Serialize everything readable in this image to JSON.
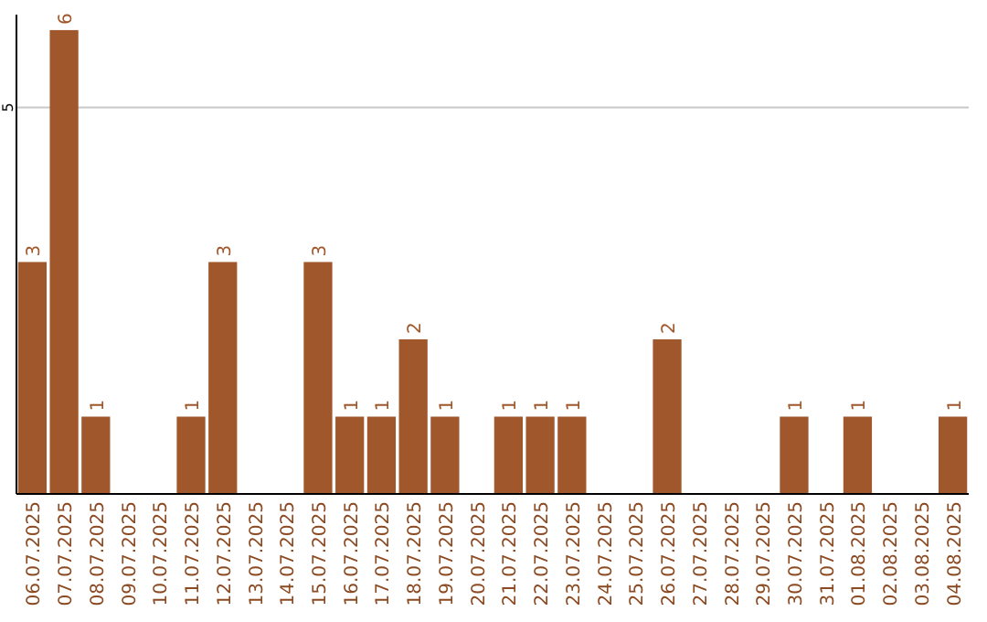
{
  "chart_data": {
    "type": "bar",
    "categories": [
      "06.07.2025",
      "07.07.2025",
      "08.07.2025",
      "09.07.2025",
      "10.07.2025",
      "11.07.2025",
      "12.07.2025",
      "13.07.2025",
      "14.07.2025",
      "15.07.2025",
      "16.07.2025",
      "17.07.2025",
      "18.07.2025",
      "19.07.2025",
      "20.07.2025",
      "21.07.2025",
      "22.07.2025",
      "23.07.2025",
      "24.07.2025",
      "25.07.2025",
      "26.07.2025",
      "27.07.2025",
      "28.07.2025",
      "29.07.2025",
      "30.07.2025",
      "31.07.2025",
      "01.08.2025",
      "02.08.2025",
      "03.08.2025",
      "04.08.2025"
    ],
    "values": [
      3,
      6,
      1,
      0,
      0,
      1,
      3,
      0,
      0,
      3,
      1,
      1,
      2,
      1,
      0,
      1,
      1,
      1,
      0,
      0,
      2,
      0,
      0,
      0,
      1,
      0,
      1,
      0,
      0,
      1
    ],
    "value_labels": [
      "3",
      "6",
      "1",
      null,
      null,
      "1",
      "3",
      null,
      null,
      "3",
      "1",
      "1",
      "2",
      "1",
      null,
      "1",
      "1",
      "1",
      null,
      null,
      "2",
      null,
      null,
      null,
      "1",
      null,
      "1",
      null,
      null,
      "1"
    ],
    "color": "#a0572b",
    "ylim": [
      0,
      6.2
    ],
    "yticks": [
      5
    ],
    "grid": "y"
  }
}
